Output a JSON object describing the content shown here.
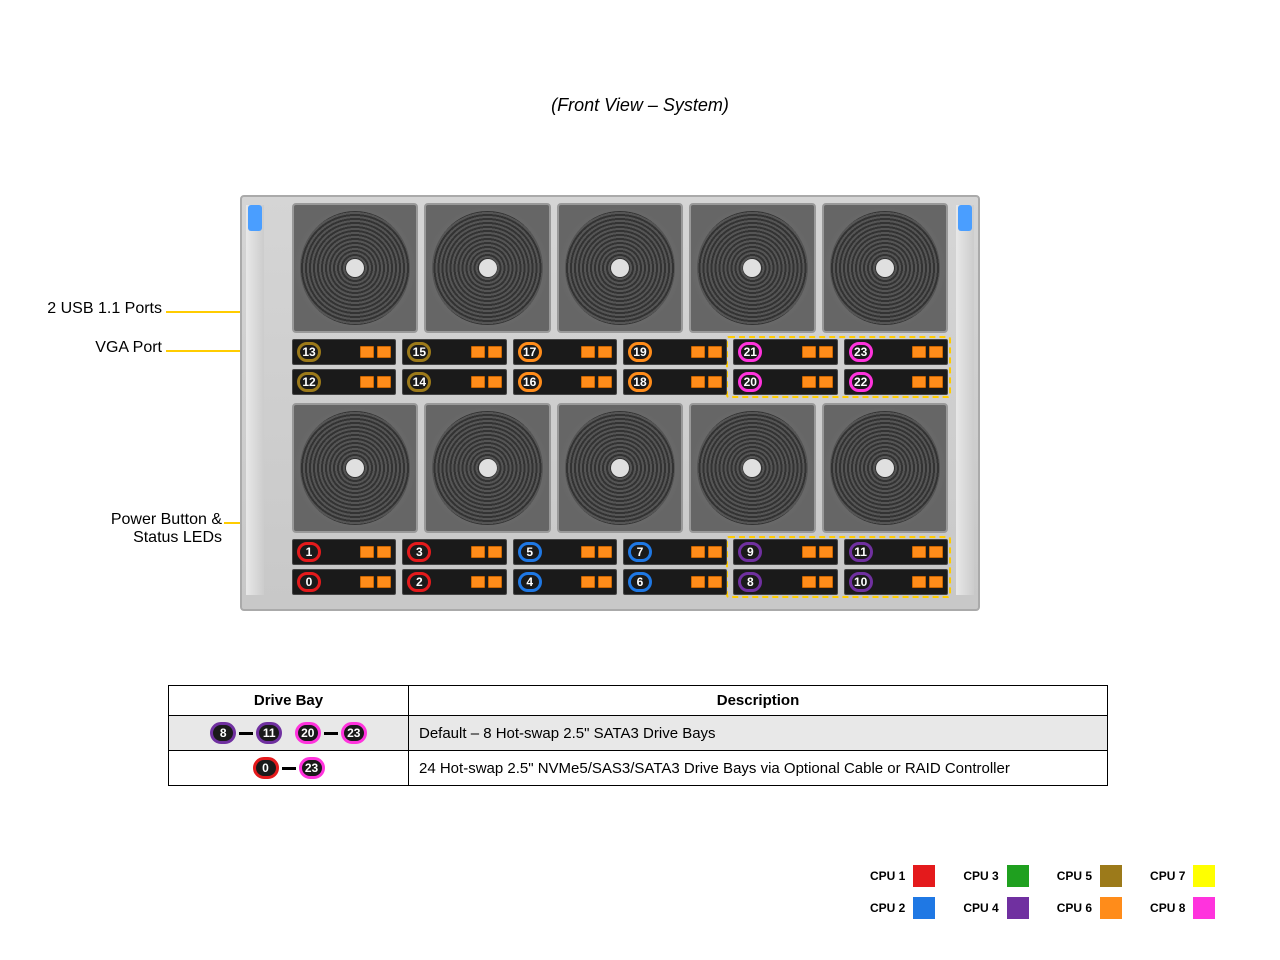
{
  "title": "(Front View – System)",
  "callouts": {
    "usb": "2 USB 1.1 Ports",
    "vga": "VGA Port",
    "power": "Power Button &\nStatus LEDs"
  },
  "cpu_colors": {
    "cpu1": "#e41a1c",
    "cpu2": "#1f78e4",
    "cpu3": "#1fa01f",
    "cpu4": "#7030a0",
    "cpu5": "#9c7a1a",
    "cpu6": "#ff8c1a",
    "cpu7": "#ffff00",
    "cpu8": "#ff33dd"
  },
  "top_bays": [
    [
      {
        "n": "13",
        "c": "cpu5"
      },
      {
        "n": "12",
        "c": "cpu5"
      }
    ],
    [
      {
        "n": "15",
        "c": "cpu5"
      },
      {
        "n": "14",
        "c": "cpu5"
      }
    ],
    [
      {
        "n": "17",
        "c": "cpu6"
      },
      {
        "n": "16",
        "c": "cpu6"
      }
    ],
    [
      {
        "n": "19",
        "c": "cpu6"
      },
      {
        "n": "18",
        "c": "cpu6"
      }
    ],
    [
      {
        "n": "21",
        "c": "cpu8"
      },
      {
        "n": "20",
        "c": "cpu8"
      }
    ],
    [
      {
        "n": "23",
        "c": "cpu8"
      },
      {
        "n": "22",
        "c": "cpu8"
      }
    ]
  ],
  "bot_bays": [
    [
      {
        "n": "1",
        "c": "cpu1"
      },
      {
        "n": "0",
        "c": "cpu1"
      }
    ],
    [
      {
        "n": "3",
        "c": "cpu1"
      },
      {
        "n": "2",
        "c": "cpu1"
      }
    ],
    [
      {
        "n": "5",
        "c": "cpu2"
      },
      {
        "n": "4",
        "c": "cpu2"
      }
    ],
    [
      {
        "n": "7",
        "c": "cpu2"
      },
      {
        "n": "6",
        "c": "cpu2"
      }
    ],
    [
      {
        "n": "9",
        "c": "cpu4"
      },
      {
        "n": "8",
        "c": "cpu4"
      }
    ],
    [
      {
        "n": "11",
        "c": "cpu4"
      },
      {
        "n": "10",
        "c": "cpu4"
      }
    ]
  ],
  "table": {
    "headers": [
      "Drive Bay",
      "Description"
    ],
    "row1_ranges": [
      {
        "a": "8",
        "ac": "cpu4",
        "b": "11",
        "bc": "cpu4"
      },
      {
        "a": "20",
        "ac": "cpu8",
        "b": "23",
        "bc": "cpu8"
      }
    ],
    "row1_desc": "Default  – 8 Hot-swap 2.5\" SATA3 Drive  Bays",
    "row2_ranges": [
      {
        "a": "0",
        "ac": "cpu1",
        "b": "23",
        "bc": "cpu8"
      }
    ],
    "row2_desc": "24 Hot-swap 2.5\" NVMe5/SAS3/SATA3 Drive  Bays via  Optional Cable or RAID Controller"
  },
  "legend": [
    {
      "label": "CPU 1",
      "c": "cpu1"
    },
    {
      "label": "CPU 3",
      "c": "cpu3"
    },
    {
      "label": "CPU 5",
      "c": "cpu5"
    },
    {
      "label": "CPU 7",
      "c": "cpu7"
    },
    {
      "label": "CPU 2",
      "c": "cpu2"
    },
    {
      "label": "CPU 4",
      "c": "cpu4"
    },
    {
      "label": "CPU 6",
      "c": "cpu6"
    },
    {
      "label": "CPU 8",
      "c": "cpu8"
    }
  ]
}
